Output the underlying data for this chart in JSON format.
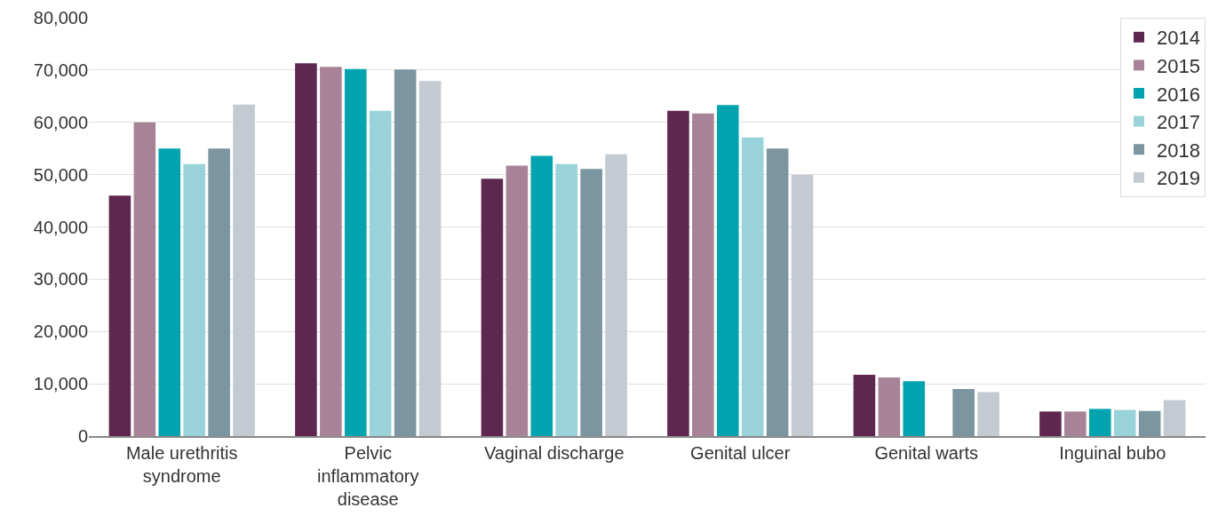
{
  "chart_data": {
    "type": "bar",
    "categories": [
      "Male urethritis syndrome",
      "Pelvic inflammatory disease",
      "Vaginal discharge",
      "Genital ulcer",
      "Genital warts",
      "Inguinal bubo"
    ],
    "series": [
      {
        "name": "2014",
        "color": "#5e2750",
        "values": [
          46000,
          71300,
          49200,
          62200,
          11700,
          4700
        ]
      },
      {
        "name": "2015",
        "color": "#a88397",
        "values": [
          60000,
          70600,
          51700,
          61700,
          11200,
          4700
        ]
      },
      {
        "name": "2016",
        "color": "#00a3ae",
        "values": [
          55000,
          70200,
          53600,
          63300,
          10500,
          5200
        ]
      },
      {
        "name": "2017",
        "color": "#99d2d9",
        "values": [
          52000,
          62200,
          52000,
          57100,
          null,
          5000
        ]
      },
      {
        "name": "2018",
        "color": "#7b95a1",
        "values": [
          55000,
          70100,
          51100,
          55000,
          9000,
          4800
        ]
      },
      {
        "name": "2019",
        "color": "#c3cad2",
        "values": [
          63400,
          67900,
          53900,
          50000,
          8400,
          6900
        ]
      }
    ],
    "ylim": [
      0,
      80000
    ],
    "yticks": [
      {
        "value": 0,
        "label": "0"
      },
      {
        "value": 10000,
        "label": "10,000"
      },
      {
        "value": 20000,
        "label": "20,000"
      },
      {
        "value": 30000,
        "label": "30,000"
      },
      {
        "value": 40000,
        "label": "40,000"
      },
      {
        "value": 50000,
        "label": "50,000"
      },
      {
        "value": 60000,
        "label": "60,000"
      },
      {
        "value": 70000,
        "label": "70,000"
      },
      {
        "value": 80000,
        "label": "80,000"
      }
    ],
    "grid": "y",
    "legend": "top right"
  }
}
